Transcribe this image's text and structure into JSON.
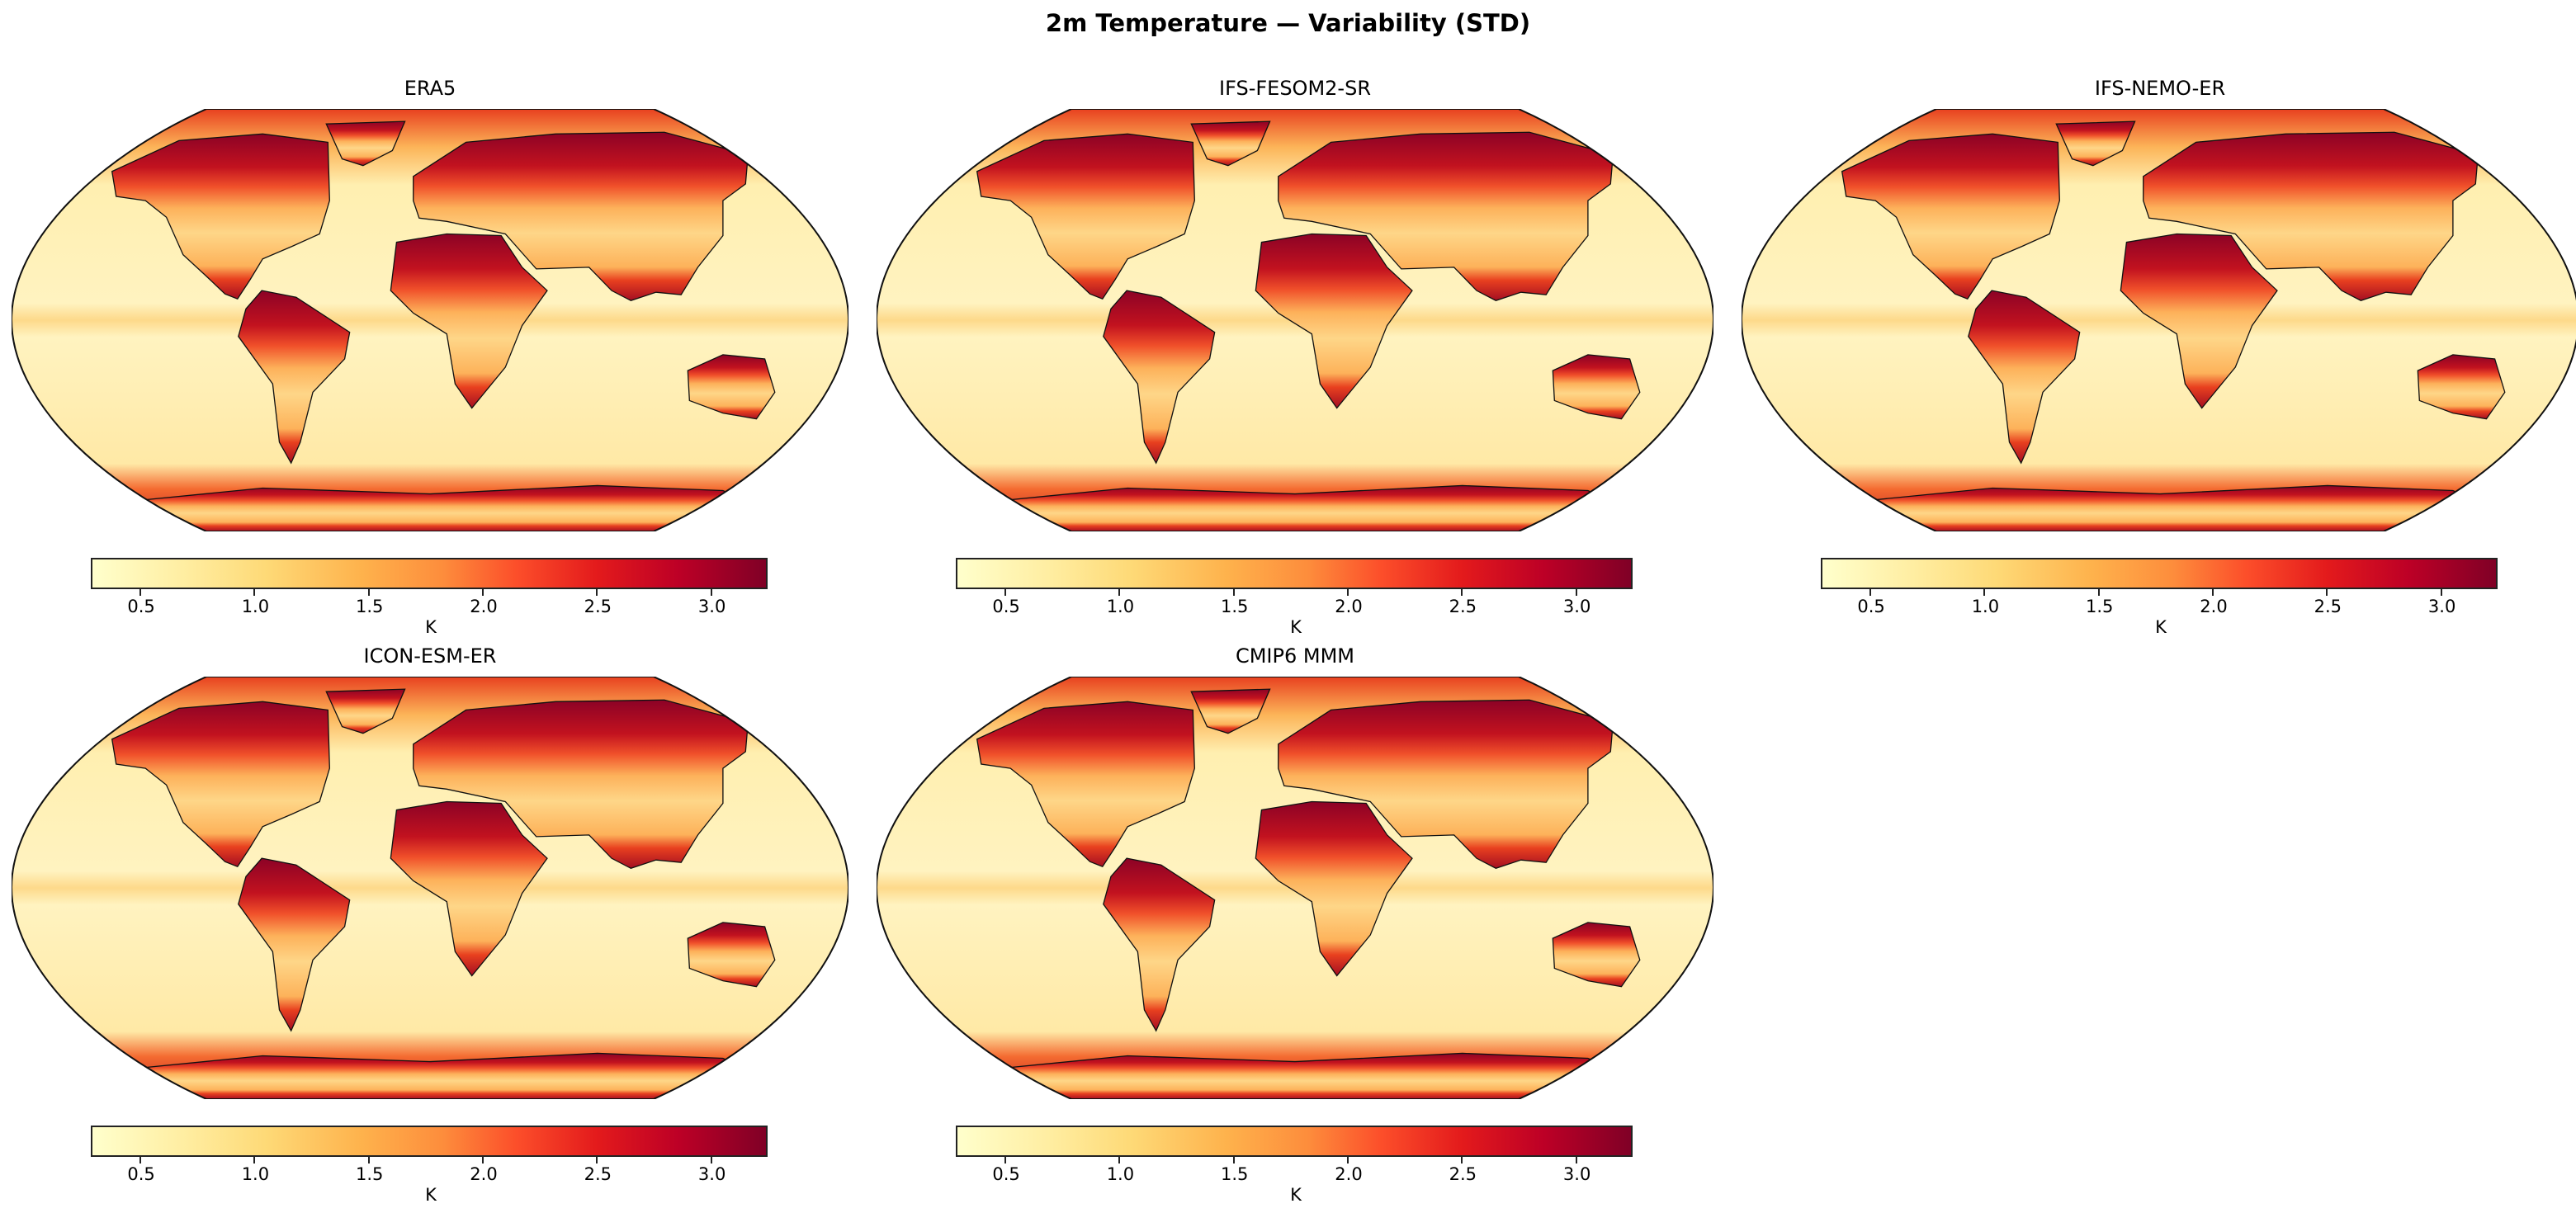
{
  "title": "2m Temperature — Variability (STD)",
  "colormap": [
    "#ffffcc",
    "#ffeda0",
    "#fed976",
    "#feb24c",
    "#fd8d3c",
    "#fc4e2a",
    "#e31a1c",
    "#bd0026",
    "#800026"
  ],
  "colorbar": {
    "label": "K",
    "range": [
      0.29,
      3.24
    ],
    "ticks": [
      0.5,
      1.0,
      1.5,
      2.0,
      2.5,
      3.0
    ],
    "tick_labels": [
      "0.5",
      "1.0",
      "1.5",
      "2.0",
      "2.5",
      "3.0"
    ]
  },
  "projection": "Robinson",
  "panels": [
    {
      "title": "ERA5"
    },
    {
      "title": "IFS-FESOM2-SR"
    },
    {
      "title": "IFS-NEMO-ER"
    },
    {
      "title": "ICON-ESM-ER"
    },
    {
      "title": "CMIP6 MMM"
    }
  ]
}
